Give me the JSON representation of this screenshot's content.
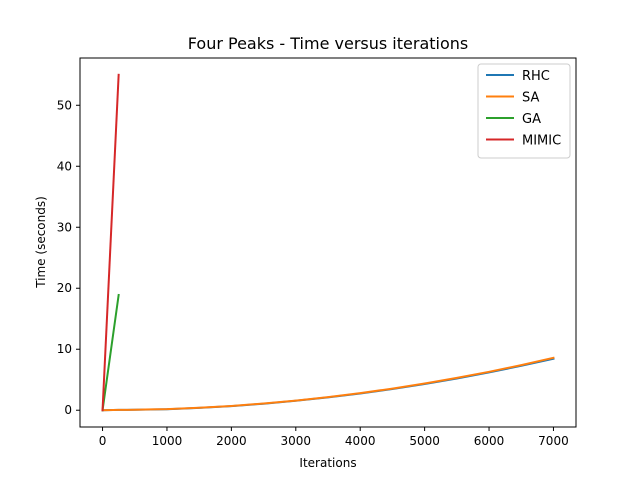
{
  "chart_data": {
    "type": "line",
    "title": "Four Peaks - Time versus iterations",
    "xlabel": "Iterations",
    "ylabel": "Time (seconds)",
    "xlim": [
      -350,
      7350
    ],
    "ylim": [
      -2.75,
      57.75
    ],
    "xticks": [
      0,
      1000,
      2000,
      3000,
      4000,
      5000,
      6000,
      7000
    ],
    "yticks": [
      0,
      10,
      20,
      30,
      40,
      50
    ],
    "grid": false,
    "legend_position": "top-right",
    "series": [
      {
        "name": "RHC",
        "color": "#1f77b4",
        "x": [
          0,
          250,
          500,
          750,
          1000,
          1500,
          2000,
          2500,
          3000,
          3500,
          4000,
          4500,
          5000,
          5500,
          6000,
          6500,
          7000
        ],
        "y": [
          0.0,
          0.05,
          0.07,
          0.12,
          0.17,
          0.38,
          0.68,
          1.07,
          1.55,
          2.1,
          2.75,
          3.48,
          4.3,
          5.2,
          6.2,
          7.28,
          8.45
        ]
      },
      {
        "name": "SA",
        "color": "#ff7f0e",
        "x": [
          0,
          250,
          500,
          750,
          1000,
          1500,
          2000,
          2500,
          3000,
          3500,
          4000,
          4500,
          5000,
          5500,
          6000,
          6500,
          7000
        ],
        "y": [
          0.0,
          0.05,
          0.08,
          0.13,
          0.18,
          0.4,
          0.7,
          1.1,
          1.58,
          2.15,
          2.8,
          3.55,
          4.38,
          5.3,
          6.3,
          7.4,
          8.6
        ]
      },
      {
        "name": "GA",
        "color": "#2ca02c",
        "x": [
          0,
          250
        ],
        "y": [
          0.0,
          18.9
        ]
      },
      {
        "name": "MIMIC",
        "color": "#d62728",
        "x": [
          0,
          250
        ],
        "y": [
          0.0,
          55.0
        ]
      }
    ]
  }
}
